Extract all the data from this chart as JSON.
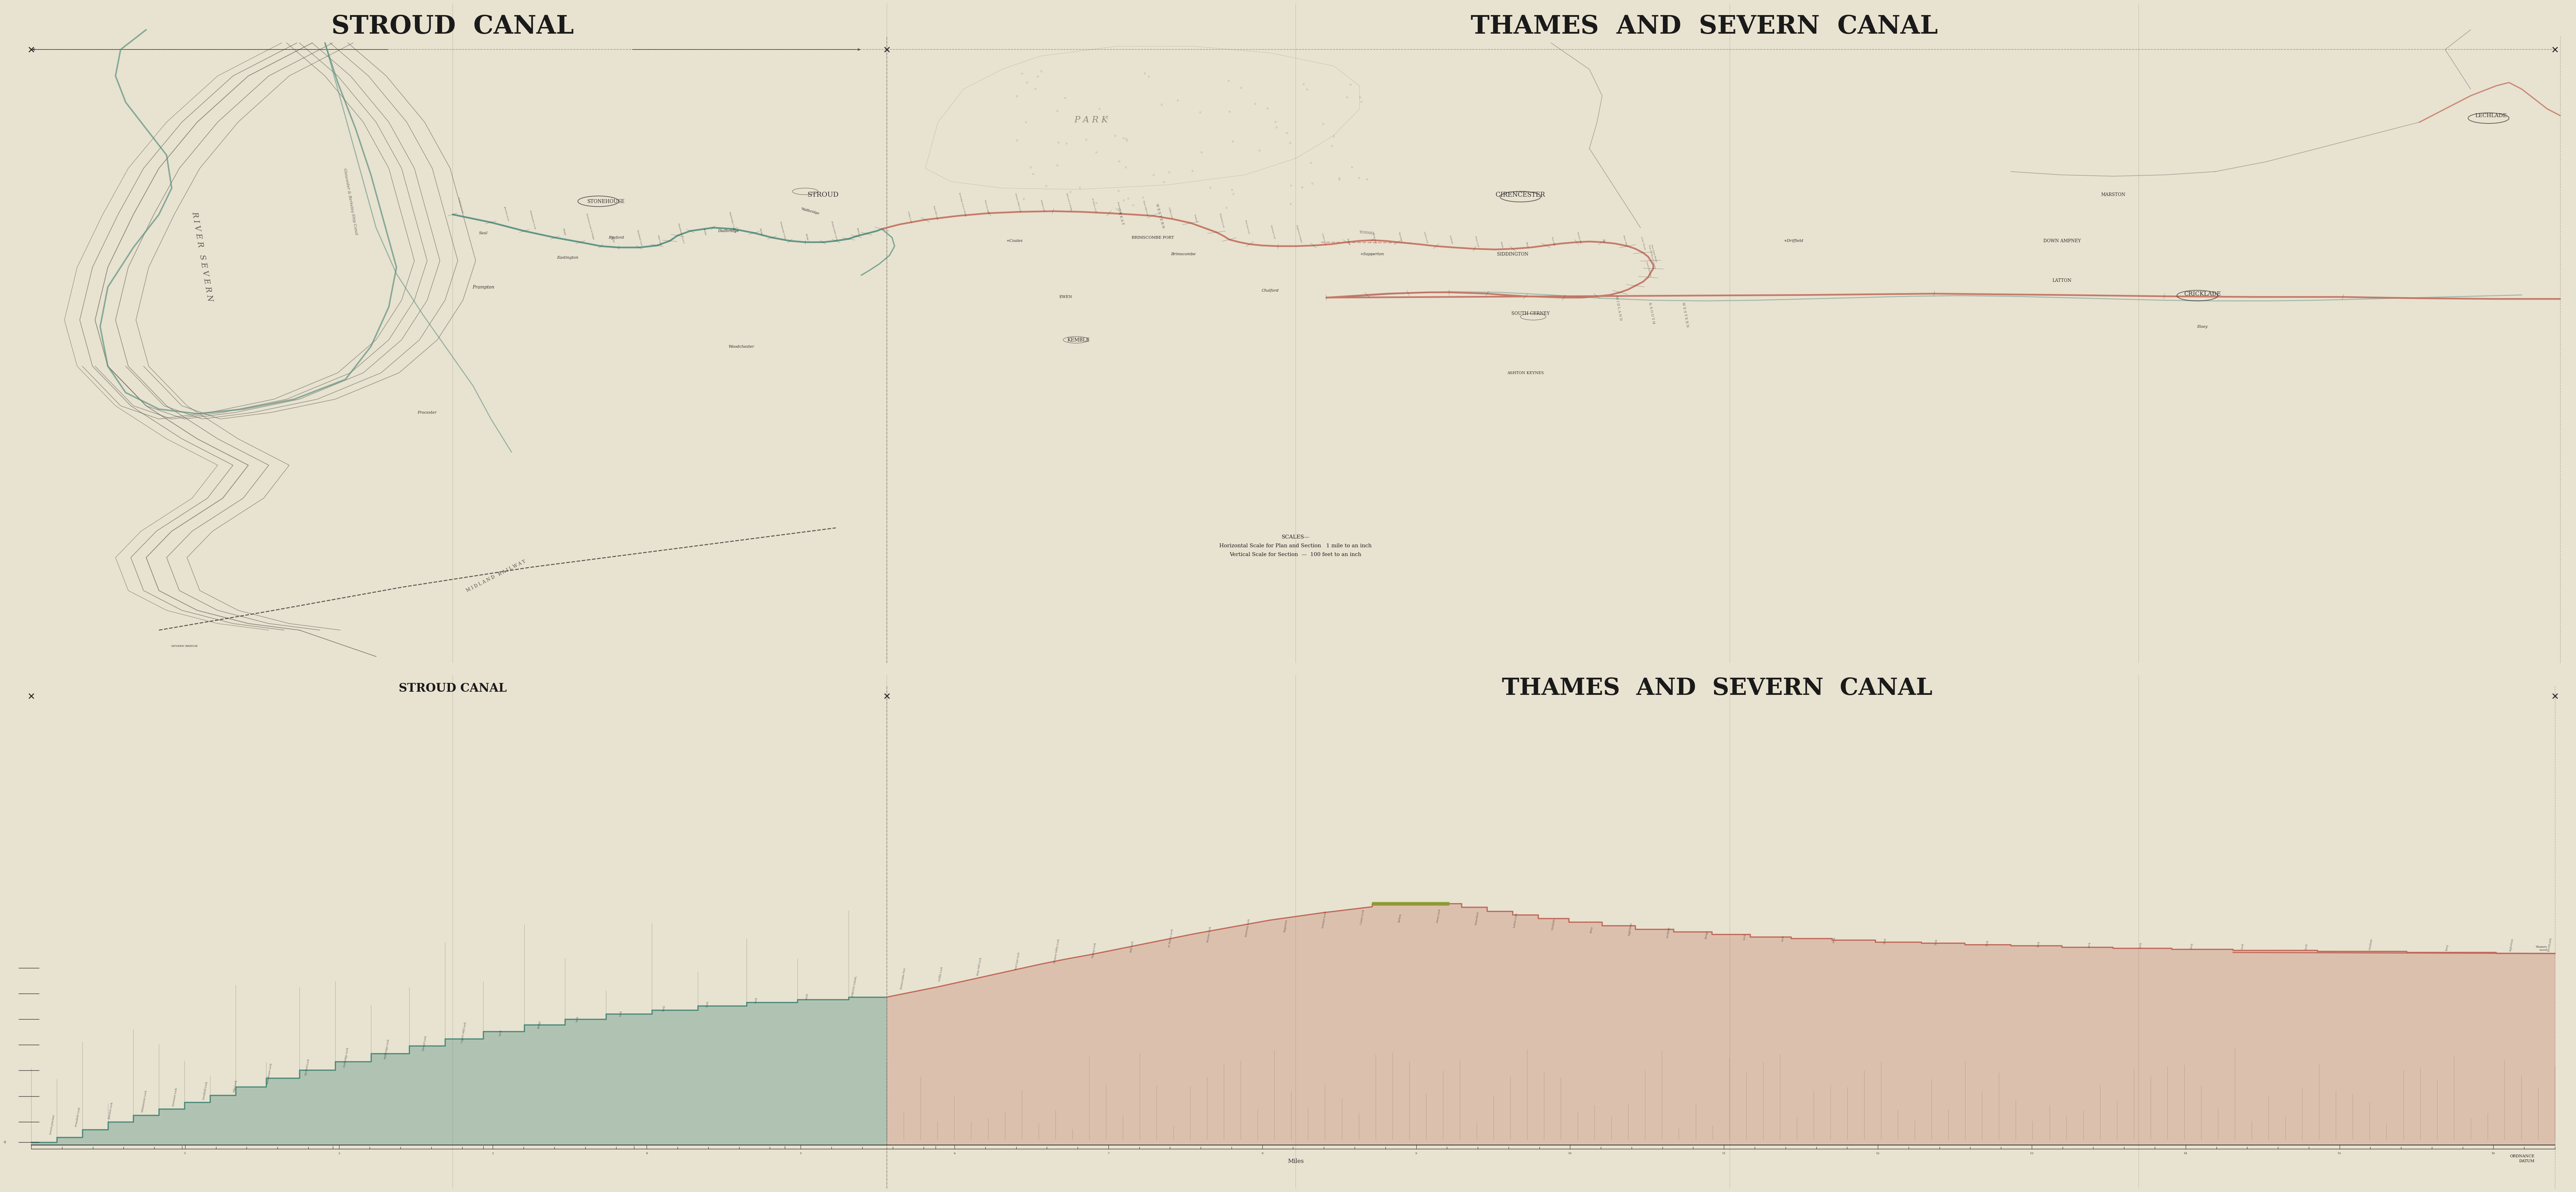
{
  "bg_color": "#e8e2d0",
  "paper_color": "#ede8d8",
  "fig_width": 73.58,
  "fig_height": 34.85,
  "dpi": 100,
  "map_title_stroud": "STROUD  CANAL",
  "map_title_thames": "THAMES  AND  SEVERN  CANAL",
  "sec_title_stroud": "STROUD CANAL",
  "sec_title_thames": "THAMES  AND  SEVERN  CANAL",
  "canal_teal": "#4a8a7a",
  "canal_red": "#c06858",
  "river_teal": "#5a9080",
  "line_dark": "#2a2a2a",
  "line_mid": "#505050",
  "line_light": "#808070",
  "text_dark": "#1a1a1a",
  "text_mid": "#303030",
  "scale_text": "SCALES—\nHorizontal Scale for Plan and Section   1 mile to an inch\nVertical Scale for Section  —  100 feet to an inch",
  "fold_color": "#c0b8a8",
  "park_color": "#c8c4b0"
}
